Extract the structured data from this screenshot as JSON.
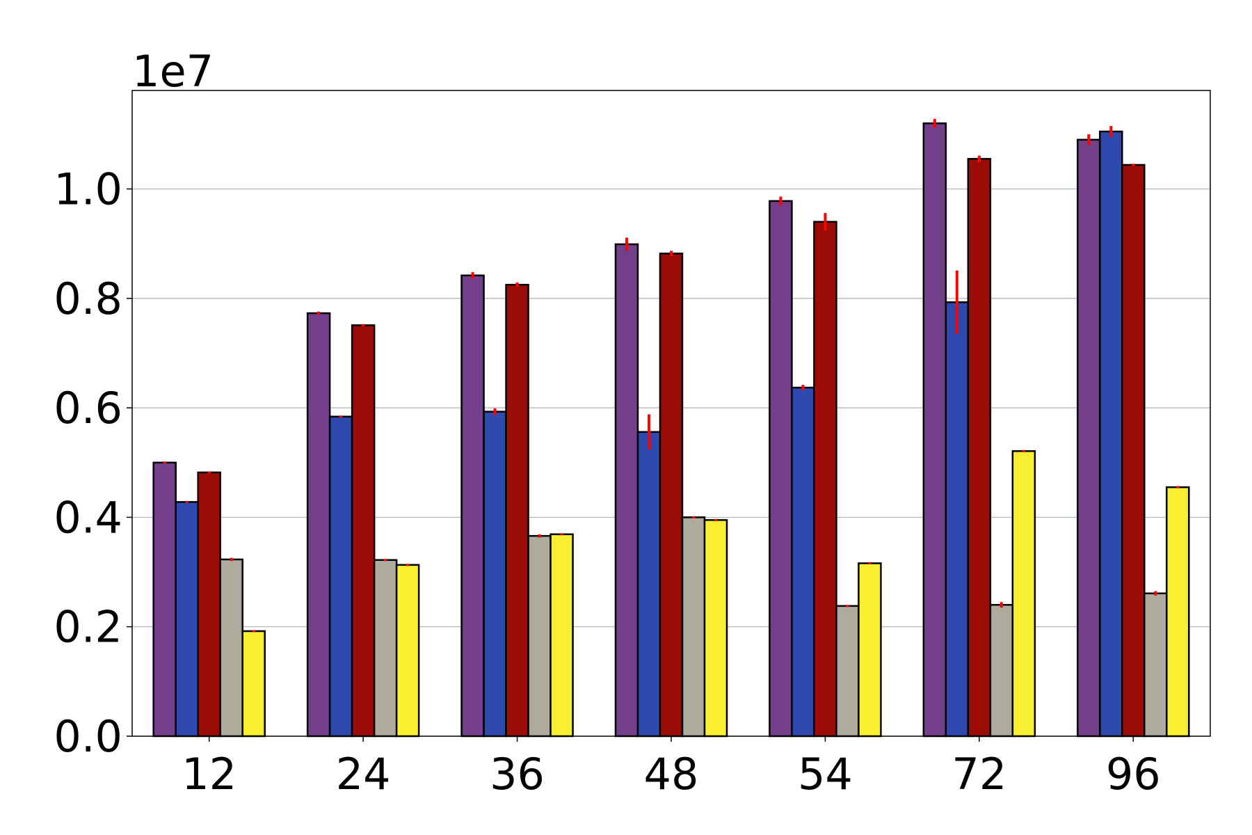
{
  "chart_data": {
    "type": "bar",
    "scale_label": "1e7",
    "scale_factor": 10000000,
    "categories": [
      "12",
      "24",
      "36",
      "48",
      "54",
      "72",
      "96"
    ],
    "ylim": [
      0,
      1.18
    ],
    "yticks": [
      0.0,
      0.2,
      0.4,
      0.6,
      0.8,
      1.0
    ],
    "ytick_labels": [
      "0.0",
      "0.2",
      "0.4",
      "0.6",
      "0.8",
      "1.0"
    ],
    "grid": "horizontal",
    "legend": "none",
    "error_bar_color": "#ff0000",
    "series": [
      {
        "color": "#743f8a",
        "values": [
          0.5,
          0.773,
          0.842,
          0.899,
          0.978,
          1.12,
          1.09
        ],
        "errors": [
          0.002,
          0.003,
          0.006,
          0.012,
          0.008,
          0.008,
          0.01
        ]
      },
      {
        "color": "#2f4aae",
        "values": [
          0.428,
          0.584,
          0.593,
          0.556,
          0.637,
          0.793,
          1.105
        ],
        "errors": [
          0.001,
          0.001,
          0.006,
          0.032,
          0.005,
          0.058,
          0.01
        ]
      },
      {
        "color": "#9b0c06",
        "values": [
          0.482,
          0.751,
          0.825,
          0.882,
          0.94,
          1.055,
          1.044
        ],
        "errors": [
          0.001,
          0.002,
          0.004,
          0.005,
          0.016,
          0.006,
          0.002
        ]
      },
      {
        "color": "#aeaa9d",
        "values": [
          0.323,
          0.322,
          0.366,
          0.4,
          0.238,
          0.24,
          0.261
        ],
        "errors": [
          0.003,
          0.001,
          0.003,
          0.002,
          0.002,
          0.005,
          0.004
        ]
      },
      {
        "color": "#f8ef31",
        "values": [
          0.192,
          0.313,
          0.369,
          0.395,
          0.316,
          0.521,
          0.455
        ],
        "errors": [
          0.001,
          0.001,
          0.001,
          0.001,
          0.001,
          0.001,
          0.002
        ]
      }
    ]
  }
}
